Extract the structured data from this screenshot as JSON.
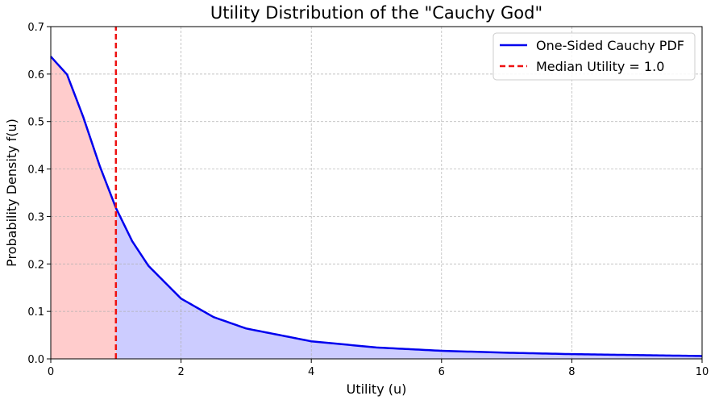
{
  "chart_data": {
    "type": "line",
    "title": "Utility Distribution of the \"Cauchy God\"",
    "xlabel": "Utility (u)",
    "ylabel": "Probability Density f(u)",
    "xlim": [
      0,
      10
    ],
    "ylim": [
      0,
      0.7
    ],
    "xticks": [
      0,
      2,
      4,
      6,
      8,
      10
    ],
    "yticks": [
      0.0,
      0.1,
      0.2,
      0.3,
      0.4,
      0.5,
      0.6,
      0.7
    ],
    "grid": true,
    "legend_position": "top-right",
    "series": [
      {
        "name": "One-Sided Cauchy PDF",
        "style": "solid",
        "color": "#0000ee",
        "x": [
          0,
          0.25,
          0.5,
          0.75,
          1,
          1.25,
          1.5,
          2,
          2.5,
          3,
          4,
          5,
          6,
          7,
          8,
          9,
          10
        ],
        "y": [
          0.637,
          0.599,
          0.509,
          0.407,
          0.318,
          0.248,
          0.196,
          0.127,
          0.088,
          0.064,
          0.037,
          0.024,
          0.017,
          0.013,
          0.01,
          0.008,
          0.006
        ]
      },
      {
        "name": "Median Utility = 1.0",
        "style": "dashed",
        "color": "#ee1111",
        "x": [
          1,
          1
        ],
        "y": [
          0,
          0.7
        ]
      }
    ],
    "shaded_regions": [
      {
        "from": 0,
        "to": 1,
        "color": "#ffcccc"
      },
      {
        "from": 1,
        "to": 10,
        "color": "#ccccff"
      }
    ]
  }
}
